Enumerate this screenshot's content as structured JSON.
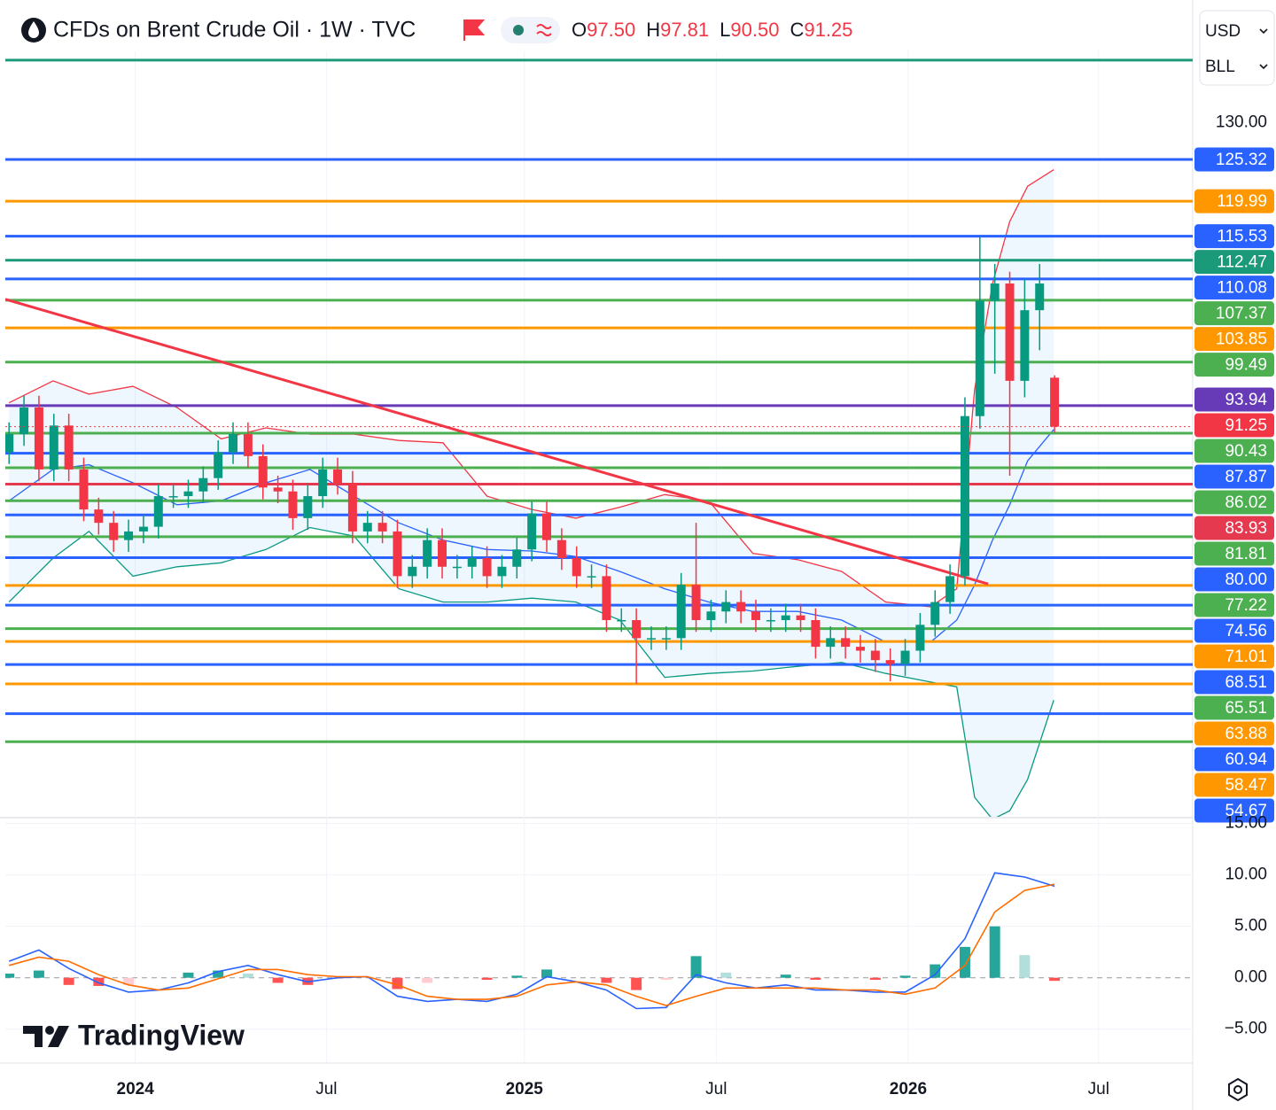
{
  "chart_data": {
    "type": "candlestick",
    "title": "CFDs on Brent Crude Oil · 1W · TVC",
    "ohlc_keys": [
      "O",
      "H",
      "L",
      "C"
    ],
    "last_candle_labels": {
      "open": "97.50",
      "high": "97.81",
      "low": "90.50",
      "close": "91.25"
    },
    "currency": "USD",
    "unit": "BLL",
    "brand": "TradingView",
    "up_color": "#089981",
    "down_color": "#f23645",
    "xlim": [
      0,
      159
    ],
    "xticks": [
      {
        "value": 17.4,
        "label": "2024"
      },
      {
        "value": 43,
        "label": "Jul"
      },
      {
        "value": 69.5,
        "label": "2025"
      },
      {
        "value": 95.2,
        "label": "Jul"
      },
      {
        "value": 120.9,
        "label": "2026"
      },
      {
        "value": 146.4,
        "label": "Jul"
      }
    ],
    "ylim": [
      41.53,
      139.43
    ],
    "yticks": [
      {
        "value": 130,
        "label": "130.00"
      }
    ],
    "x": [
      0.5,
      2.5,
      4.5,
      6.5,
      8.5,
      10.5,
      12.5,
      14.5,
      16.5,
      18.5,
      20.5,
      22.5,
      24.5,
      26.5,
      28.5,
      30.5,
      32.5,
      34.5,
      36.5,
      38.5,
      40.5,
      42.5,
      44.5,
      46.5,
      48.5,
      50.5,
      52.5,
      54.5,
      56.5,
      58.5,
      60.5,
      62.5,
      64.5,
      66.5,
      68.5,
      70.5,
      72.5,
      74.5,
      76.5,
      78.5,
      80.5,
      82.5,
      84.5,
      86.5,
      88.5,
      90.5,
      92.5,
      94.5,
      96.5,
      98.5,
      100.5,
      102.5,
      104.5,
      106.5,
      108.5,
      110.5,
      112.5,
      114.5,
      116.5,
      118.5,
      120.5,
      122.5,
      124.5,
      126.5,
      128.5,
      130.5,
      132.5,
      134.5,
      136.5,
      138.5,
      140.5
    ],
    "open": [
      88.0,
      90.3,
      93.7,
      85.8,
      91.4,
      85.8,
      80.7,
      79.0,
      76.8,
      77.9,
      78.5,
      82.4,
      82.4,
      83.0,
      84.7,
      88.0,
      90.3,
      87.5,
      83.5,
      83.0,
      79.6,
      82.4,
      85.8,
      84.1,
      77.9,
      79.0,
      77.9,
      72.2,
      73.4,
      76.8,
      73.4,
      73.4,
      74.5,
      72.2,
      73.4,
      75.6,
      80.2,
      76.8,
      74.5,
      72.2,
      72.2,
      66.6,
      66.6,
      64.3,
      64.3,
      64.3,
      71.1,
      66.6,
      67.7,
      68.9,
      67.7,
      66.6,
      66.6,
      67.2,
      66.6,
      63.2,
      64.3,
      63.2,
      62.7,
      61.5,
      61.0,
      62.7,
      66.0,
      68.9,
      72.2,
      92.6,
      107.3,
      109.5,
      97.1,
      106.1,
      97.5
    ],
    "high": [
      91.8,
      95.2,
      95.2,
      92.9,
      92.9,
      87.3,
      82.2,
      80.5,
      79.4,
      80.0,
      83.9,
      83.9,
      84.5,
      86.2,
      89.5,
      91.8,
      91.8,
      89.0,
      85.0,
      84.5,
      83.9,
      87.3,
      87.3,
      85.6,
      80.5,
      80.5,
      79.4,
      74.9,
      78.3,
      78.3,
      74.9,
      76.0,
      76.0,
      74.9,
      77.1,
      81.7,
      81.7,
      78.3,
      76.0,
      73.7,
      73.7,
      68.1,
      68.1,
      65.8,
      65.8,
      72.6,
      79.0,
      69.2,
      70.4,
      70.4,
      69.2,
      68.1,
      68.7,
      68.7,
      68.1,
      65.8,
      65.8,
      64.7,
      64.2,
      63.0,
      64.2,
      67.5,
      70.4,
      73.7,
      95.0,
      115.5,
      112.0,
      111.0,
      110.0,
      112.0,
      97.81
    ],
    "low": [
      86.5,
      88.8,
      84.3,
      84.3,
      84.3,
      79.2,
      77.5,
      75.3,
      75.3,
      76.4,
      77.0,
      80.9,
      80.9,
      81.5,
      83.2,
      86.5,
      86.0,
      82.0,
      81.5,
      78.1,
      78.1,
      80.9,
      82.6,
      76.4,
      76.4,
      76.4,
      70.7,
      70.7,
      71.9,
      71.9,
      71.9,
      71.9,
      70.7,
      70.7,
      71.9,
      74.1,
      75.3,
      73.0,
      70.7,
      70.7,
      65.1,
      65.1,
      58.5,
      62.8,
      62.8,
      62.8,
      65.1,
      65.1,
      66.2,
      66.2,
      65.1,
      65.1,
      65.1,
      65.1,
      61.7,
      61.7,
      61.7,
      61.2,
      60.0,
      58.8,
      59.5,
      61.2,
      64.5,
      67.4,
      71.0,
      91.0,
      98.0,
      85.0,
      95.0,
      101.0,
      90.5
    ],
    "close": [
      90.3,
      93.7,
      85.8,
      91.4,
      85.8,
      80.7,
      79.0,
      76.8,
      77.9,
      78.5,
      82.4,
      82.4,
      83.0,
      84.7,
      88.0,
      90.3,
      87.5,
      83.5,
      83.0,
      79.6,
      82.4,
      85.8,
      84.1,
      77.9,
      79.0,
      77.9,
      72.2,
      73.4,
      76.8,
      73.4,
      73.4,
      74.5,
      72.2,
      73.4,
      75.6,
      80.2,
      76.8,
      74.5,
      72.2,
      72.2,
      66.6,
      66.6,
      64.3,
      64.3,
      64.3,
      71.1,
      66.6,
      67.7,
      68.9,
      67.7,
      66.6,
      66.6,
      67.2,
      66.6,
      63.2,
      64.3,
      63.2,
      62.7,
      61.5,
      61.0,
      62.7,
      66.0,
      68.9,
      72.2,
      92.6,
      107.3,
      109.5,
      97.1,
      106.1,
      109.5,
      91.25
    ],
    "levels": [
      {
        "value": 125.32,
        "color": "#2962ff"
      },
      {
        "value": 119.99,
        "color": "#ff9800"
      },
      {
        "value": 115.53,
        "color": "#2962ff"
      },
      {
        "value": 112.47,
        "color": "#1b9a7a"
      },
      {
        "value": 110.08,
        "color": "#2962ff"
      },
      {
        "value": 107.37,
        "color": "#4caf50"
      },
      {
        "value": 103.85,
        "color": "#ff9800"
      },
      {
        "value": 99.49,
        "color": "#4caf50"
      },
      {
        "value": 93.94,
        "color": "#673ab7"
      },
      {
        "value": 90.43,
        "color": "#4caf50"
      },
      {
        "value": 87.87,
        "color": "#2962ff"
      },
      {
        "value": 86.02,
        "color": "#4caf50"
      },
      {
        "value": 83.93,
        "color": "#e53950"
      },
      {
        "value": 81.81,
        "color": "#4caf50"
      },
      {
        "value": 80,
        "label": "80.00",
        "color": "#2962ff"
      },
      {
        "value": 77.22,
        "color": "#4caf50"
      },
      {
        "value": 74.56,
        "color": "#2962ff"
      },
      {
        "value": 71.01,
        "color": "#ff9800"
      },
      {
        "value": 68.51,
        "color": "#2962ff"
      },
      {
        "value": 65.51,
        "color": "#4caf50"
      },
      {
        "value": 63.88,
        "color": "#ff9800"
      },
      {
        "value": 60.94,
        "color": "#2962ff"
      },
      {
        "value": 58.47,
        "color": "#ff9800"
      },
      {
        "value": 54.67,
        "color": "#2962ff"
      }
    ],
    "extra_lines": [
      {
        "value": 137.97,
        "color": "#1b9a7a"
      },
      {
        "value": 51.1,
        "color": "#4caf50"
      }
    ],
    "trendline": {
      "x": [
        0,
        131.6
      ],
      "values": [
        107.5,
        71.2
      ],
      "color": "#f23645"
    },
    "bands": {
      "x": [
        0.5,
        6.4,
        11.2,
        17.1,
        23.0,
        28.9,
        34.9,
        40.8,
        46.7,
        52.7,
        58.6,
        64.5,
        70.5,
        76.4,
        82.3,
        88.3,
        94.2,
        100.1,
        106.1,
        112.0,
        117.9,
        123.9,
        127.4,
        129.8,
        132.2,
        134.5,
        136.9,
        140.4
      ],
      "upper": [
        94.3,
        97.1,
        95.4,
        96.4,
        93.7,
        89.7,
        91.1,
        90.3,
        90.3,
        89.5,
        89.2,
        82.4,
        80.7,
        79.6,
        81.0,
        82.6,
        81.8,
        75.1,
        74.3,
        72.8,
        68.9,
        68.3,
        70.6,
        96.0,
        109.5,
        117.4,
        121.9,
        124.0
      ],
      "middle": [
        81.8,
        85.8,
        86.4,
        84.1,
        81.3,
        81.8,
        84.1,
        85.8,
        82.4,
        79.0,
        76.8,
        75.6,
        75.4,
        74.7,
        72.8,
        70.6,
        68.9,
        67.7,
        67.7,
        66.6,
        63.8,
        63.8,
        66.6,
        71.1,
        76.8,
        81.3,
        86.9,
        90.9
      ],
      "lower": [
        68.9,
        74.5,
        77.9,
        72.2,
        73.4,
        73.9,
        75.6,
        78.4,
        77.3,
        70.6,
        68.9,
        68.9,
        69.4,
        68.9,
        66.6,
        59.3,
        59.8,
        60.1,
        60.7,
        61.2,
        59.8,
        58.7,
        58.1,
        44.0,
        41.2,
        42.3,
        46.3,
        56.4
      ],
      "upper_color": "#f23645",
      "middle_color": "#2962ff",
      "lower_color": "#089981",
      "fill": "rgba(33,150,243,0.08)"
    },
    "macd": {
      "ylim": [
        -8.3,
        15.4
      ],
      "yticks": [
        {
          "value": 15,
          "label": "15.00"
        },
        {
          "value": 10,
          "label": "10.00"
        },
        {
          "value": 5,
          "label": "5.00"
        },
        {
          "value": 0,
          "label": "0.00"
        },
        {
          "value": -5,
          "label": "−5.00"
        }
      ],
      "x": [
        0.5,
        4.5,
        8.5,
        12.5,
        16.5,
        20.5,
        24.5,
        28.5,
        32.5,
        36.5,
        40.5,
        44.5,
        48.5,
        52.5,
        56.5,
        60.5,
        64.5,
        68.5,
        72.5,
        76.5,
        80.5,
        84.5,
        88.5,
        92.5,
        96.5,
        100.5,
        104.5,
        108.5,
        112.5,
        116.5,
        120.5,
        124.5,
        128.5,
        132.5,
        136.5,
        140.5
      ],
      "macd": [
        1.6,
        2.7,
        0.9,
        -0.5,
        -1.4,
        -1.2,
        -0.5,
        0.6,
        1.2,
        0.3,
        -0.4,
        0.0,
        0.1,
        -1.8,
        -2.3,
        -2.1,
        -2.3,
        -1.6,
        0.1,
        -0.4,
        -1.2,
        -3.0,
        -2.9,
        0.3,
        -0.5,
        -1.0,
        -0.7,
        -1.2,
        -1.2,
        -1.4,
        -1.4,
        0.3,
        3.8,
        10.2,
        9.8,
        8.9
      ],
      "signal": [
        1.2,
        2.0,
        1.6,
        0.3,
        -0.7,
        -1.2,
        -1.0,
        -0.1,
        0.8,
        0.8,
        0.3,
        0.1,
        0.1,
        -0.7,
        -1.8,
        -2.1,
        -2.1,
        -1.8,
        -0.7,
        -0.4,
        -0.7,
        -1.8,
        -2.7,
        -1.8,
        -1.0,
        -1.0,
        -1.0,
        -1.0,
        -1.2,
        -1.2,
        -1.6,
        -1.0,
        1.2,
        6.4,
        8.5,
        9.1
      ],
      "histogram": [
        0.4,
        0.7,
        -0.7,
        -0.8,
        -0.7,
        0.0,
        0.5,
        0.7,
        0.4,
        -0.5,
        -0.7,
        -0.1,
        0.0,
        -1.1,
        -0.5,
        0.0,
        -0.2,
        0.2,
        0.8,
        0.0,
        -0.5,
        -1.2,
        -0.2,
        2.1,
        0.5,
        0.0,
        0.3,
        -0.2,
        0.0,
        -0.2,
        0.2,
        1.3,
        3.0,
        5.0,
        2.2,
        -0.3
      ],
      "macd_color": "#2962ff",
      "signal_color": "#ff6d00"
    }
  }
}
